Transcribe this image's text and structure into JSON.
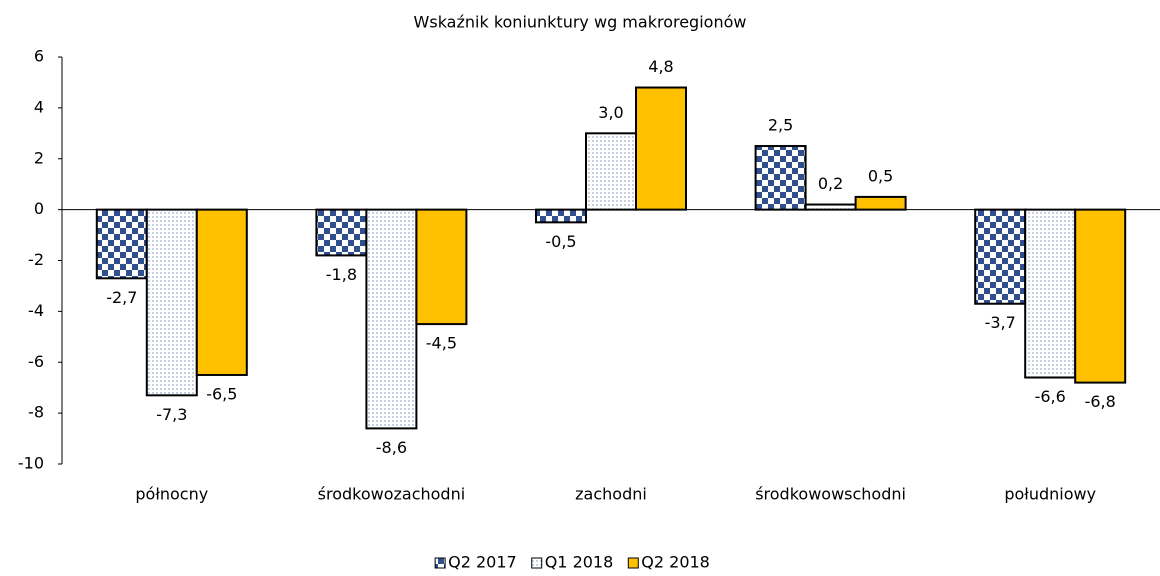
{
  "chart_data": {
    "type": "bar",
    "title": "Wskaźnik koniunktury wg makroregionów",
    "categories": [
      "północny",
      "środkowozachodni",
      "zachodni",
      "środkowowschodni",
      "południowy"
    ],
    "series": [
      {
        "name": "Q2 2017",
        "color": "#2f4f8f",
        "pattern": "checker",
        "values": [
          -2.7,
          -1.8,
          -0.5,
          2.5,
          -3.7
        ],
        "value_labels": [
          "-2,7",
          "-1,8",
          "-0,5",
          "2,5",
          "-3,7"
        ]
      },
      {
        "name": "Q1 2018",
        "color": "#6f8fbf",
        "pattern": "dots",
        "values": [
          -7.3,
          -8.6,
          3.0,
          0.2,
          -6.6
        ],
        "value_labels": [
          "-7,3",
          "-8,6",
          "3,0",
          "0,2",
          "-6,6"
        ]
      },
      {
        "name": "Q2 2018",
        "color": "#ffc000",
        "pattern": "solid",
        "values": [
          -6.5,
          -4.5,
          4.8,
          0.5,
          -6.8
        ],
        "value_labels": [
          "-6,5",
          "-4,5",
          "4,8",
          "0,5",
          "-6,8"
        ]
      }
    ],
    "ylim": [
      -10,
      6
    ],
    "yticks": [
      -10,
      -8,
      -6,
      -4,
      -2,
      0,
      2,
      4,
      6
    ],
    "grid": false,
    "legend": "bottom"
  }
}
